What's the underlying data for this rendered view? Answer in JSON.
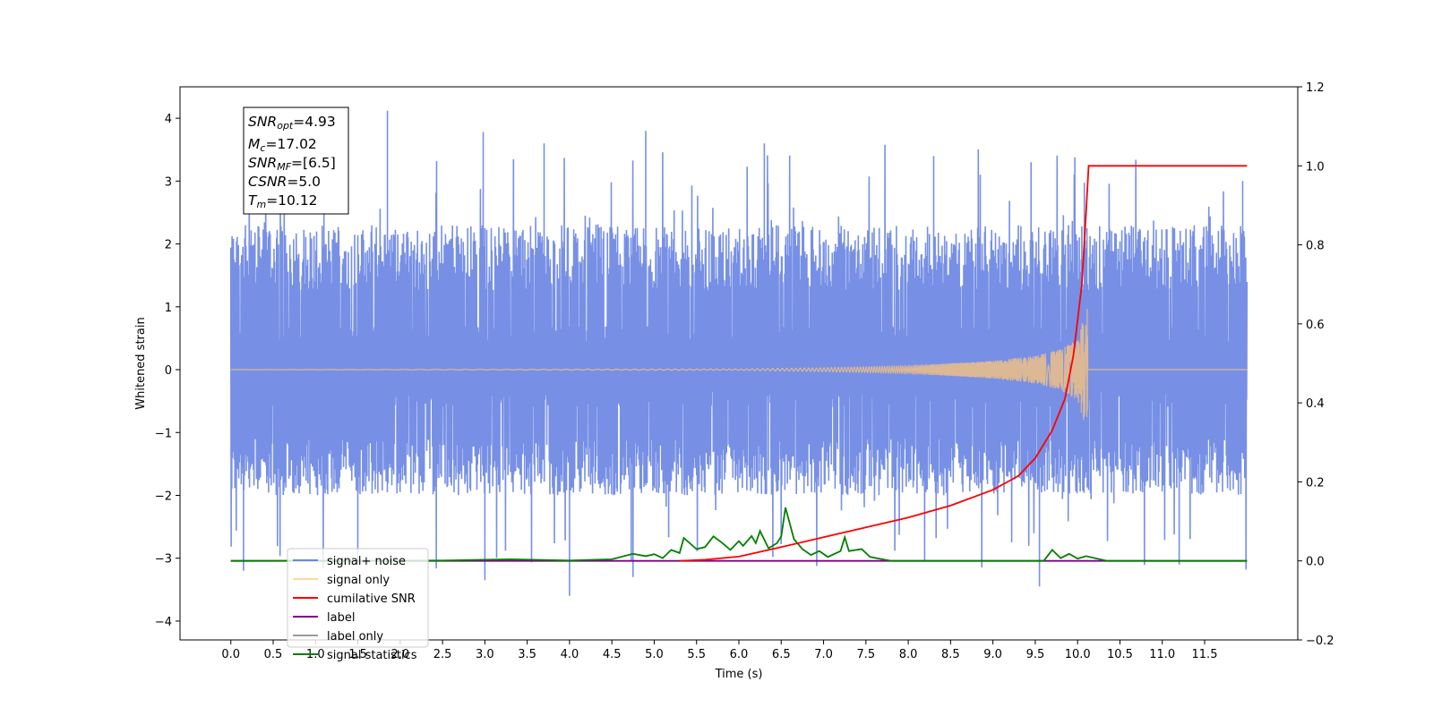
{
  "chart_data": {
    "type": "line",
    "xlabel": "Time (s)",
    "ylabel": "Whitened strain",
    "xlim": [
      -0.6,
      12.6
    ],
    "ylim": [
      -4.3,
      4.5
    ],
    "y2lim": [
      -0.2,
      1.2
    ],
    "grid": false,
    "x_ticks": [
      "0.0",
      "0.5",
      "1.0",
      "1.5",
      "2.0",
      "2.5",
      "3.0",
      "3.5",
      "4.0",
      "4.5",
      "5.0",
      "5.5",
      "6.0",
      "6.5",
      "7.0",
      "7.5",
      "8.0",
      "8.5",
      "9.0",
      "9.5",
      "10.0",
      "10.5",
      "11.0",
      "11.5"
    ],
    "y_ticks": [
      "4",
      "3",
      "2",
      "1",
      "0",
      "−1",
      "−2",
      "−3",
      "−4"
    ],
    "y2_ticks": [
      "1.2",
      "1.0",
      "0.8",
      "0.6",
      "0.4",
      "0.2",
      "0.0",
      "−0.2"
    ],
    "info_box": {
      "snr_opt": {
        "base": "SNR",
        "sub": "opt",
        "value": "=4.93"
      },
      "mc": {
        "base": "M",
        "sub": "c",
        "value": "=17.02"
      },
      "snr_mf": {
        "base": "SNR",
        "sub": "MF",
        "value": "=[6.5]"
      },
      "csnr": {
        "base": "CSNR",
        "value": "=5.0"
      },
      "tm": {
        "base": "T",
        "sub": "m",
        "value": "=10.12"
      }
    },
    "legend": {
      "placement": "lower-left",
      "entries": [
        {
          "label": "signal+ noise",
          "color": "#6b87e3"
        },
        {
          "label": "signal only",
          "color": "#ffc67a"
        },
        {
          "label": "cumilative SNR",
          "color": "#ff0000"
        },
        {
          "label": "label",
          "color": "#800080"
        },
        {
          "label": "label only",
          "color": "#9b9b9b"
        },
        {
          "label": "signal statistics",
          "color": "#008000"
        }
      ]
    },
    "series": [
      {
        "name": "signal+ noise",
        "axis": "left",
        "color": "#6b87e3",
        "x_range": [
          0.0,
          12.0
        ],
        "envelope": {
          "typical_low": -2.0,
          "typical_high": 2.3,
          "max": 4.12,
          "min": -3.6
        },
        "peaks": [
          [
            1.85,
            4.12
          ],
          [
            1.1,
            3.85
          ],
          [
            2.98,
            3.78
          ],
          [
            3.7,
            3.6
          ],
          [
            4.9,
            3.8
          ],
          [
            6.3,
            3.6
          ],
          [
            8.3,
            3.4
          ],
          [
            9.45,
            3.3
          ],
          [
            11.95,
            3.0
          ]
        ],
        "troughs": [
          [
            4.0,
            -3.6
          ],
          [
            9.55,
            -3.45
          ],
          [
            3.0,
            -3.35
          ],
          [
            4.75,
            -3.3
          ],
          [
            0.15,
            -3.2
          ],
          [
            11.2,
            -3.1
          ],
          [
            1.5,
            -3.1
          ]
        ]
      },
      {
        "name": "signal only",
        "axis": "left",
        "color": "#ffc67a",
        "points": [
          [
            0.0,
            0.0
          ],
          [
            6.0,
            0.01
          ],
          [
            7.0,
            0.03
          ],
          [
            8.0,
            0.06
          ],
          [
            9.0,
            0.14
          ],
          [
            9.5,
            0.22
          ],
          [
            9.8,
            0.32
          ],
          [
            10.0,
            0.48
          ],
          [
            10.1,
            0.95
          ],
          [
            10.12,
            0.98
          ],
          [
            10.13,
            0.0
          ],
          [
            12.0,
            0.0
          ]
        ],
        "min_envelope_at_merger": -0.8
      },
      {
        "name": "cumilative SNR",
        "axis": "right",
        "color": "#ff0000",
        "points": [
          [
            5.3,
            0.0
          ],
          [
            5.6,
            0.003
          ],
          [
            6.0,
            0.011
          ],
          [
            6.5,
            0.035
          ],
          [
            7.0,
            0.06
          ],
          [
            7.5,
            0.085
          ],
          [
            8.0,
            0.11
          ],
          [
            8.5,
            0.14
          ],
          [
            9.0,
            0.18
          ],
          [
            9.3,
            0.215
          ],
          [
            9.5,
            0.26
          ],
          [
            9.7,
            0.33
          ],
          [
            9.85,
            0.41
          ],
          [
            9.95,
            0.52
          ],
          [
            10.05,
            0.7
          ],
          [
            10.1,
            0.88
          ],
          [
            10.13,
            1.0
          ],
          [
            12.0,
            1.0
          ]
        ]
      },
      {
        "name": "label",
        "axis": "right",
        "color": "#800080",
        "points": [
          [
            0.0,
            0.0
          ],
          [
            12.0,
            0.0
          ]
        ]
      },
      {
        "name": "signal statistics",
        "axis": "right",
        "color": "#008000",
        "points": [
          [
            0.0,
            0.0
          ],
          [
            2.5,
            0.001
          ],
          [
            3.3,
            0.004
          ],
          [
            4.0,
            0.001
          ],
          [
            4.5,
            0.004
          ],
          [
            4.75,
            0.018
          ],
          [
            4.9,
            0.012
          ],
          [
            5.0,
            0.017
          ],
          [
            5.1,
            0.007
          ],
          [
            5.2,
            0.028
          ],
          [
            5.3,
            0.02
          ],
          [
            5.35,
            0.058
          ],
          [
            5.5,
            0.03
          ],
          [
            5.6,
            0.035
          ],
          [
            5.7,
            0.062
          ],
          [
            5.8,
            0.046
          ],
          [
            5.9,
            0.028
          ],
          [
            6.0,
            0.05
          ],
          [
            6.05,
            0.038
          ],
          [
            6.15,
            0.063
          ],
          [
            6.2,
            0.045
          ],
          [
            6.25,
            0.076
          ],
          [
            6.35,
            0.032
          ],
          [
            6.45,
            0.045
          ],
          [
            6.5,
            0.062
          ],
          [
            6.55,
            0.135
          ],
          [
            6.65,
            0.055
          ],
          [
            6.75,
            0.03
          ],
          [
            6.85,
            0.015
          ],
          [
            6.95,
            0.025
          ],
          [
            7.05,
            0.01
          ],
          [
            7.2,
            0.025
          ],
          [
            7.25,
            0.06
          ],
          [
            7.3,
            0.025
          ],
          [
            7.45,
            0.03
          ],
          [
            7.55,
            0.01
          ],
          [
            7.8,
            0.0
          ],
          [
            9.6,
            0.0
          ],
          [
            9.7,
            0.028
          ],
          [
            9.8,
            0.007
          ],
          [
            9.9,
            0.018
          ],
          [
            10.0,
            0.006
          ],
          [
            10.1,
            0.012
          ],
          [
            10.35,
            0.0
          ],
          [
            12.0,
            0.0
          ]
        ]
      }
    ]
  }
}
